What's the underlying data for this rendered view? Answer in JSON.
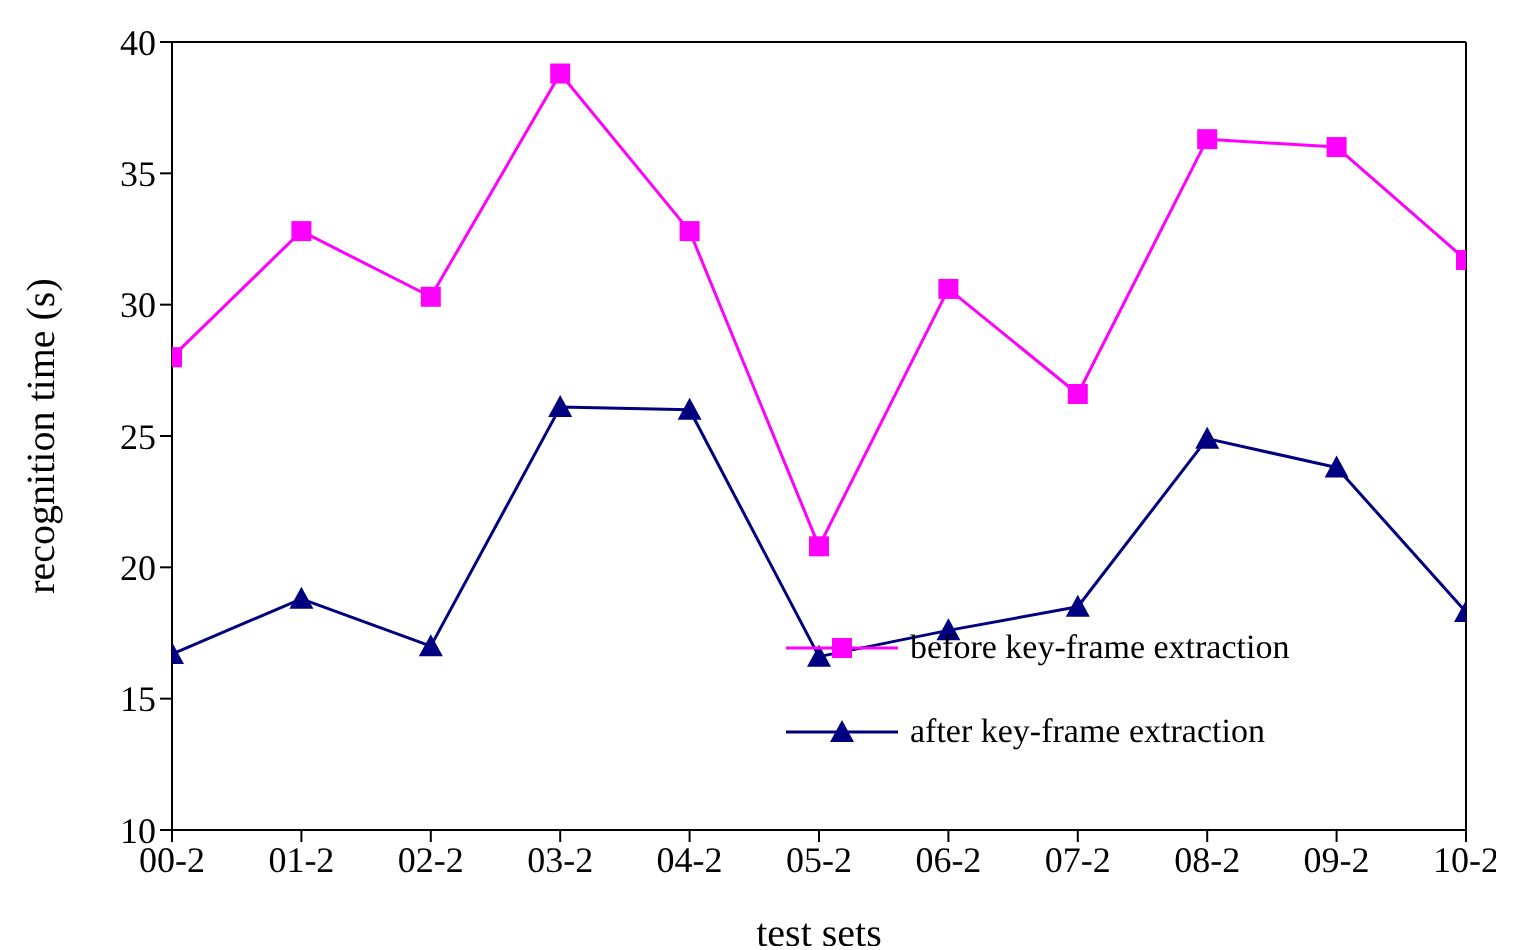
{
  "chart_data": {
    "type": "line",
    "xlabel": "test sets",
    "ylabel": "recognition time (s)",
    "categories": [
      "00-2",
      "01-2",
      "02-2",
      "03-2",
      "04-2",
      "05-2",
      "06-2",
      "07-2",
      "08-2",
      "09-2",
      "10-2"
    ],
    "series": [
      {
        "name": "before key-frame extraction",
        "color": "#ff00ff",
        "marker": "square",
        "values": [
          28.0,
          32.8,
          30.3,
          38.8,
          32.8,
          20.8,
          30.6,
          26.6,
          36.3,
          36.0,
          31.7
        ]
      },
      {
        "name": "after key-frame extraction",
        "color": "#000080",
        "marker": "triangle",
        "values": [
          16.7,
          18.8,
          17.0,
          26.1,
          26.0,
          16.6,
          17.6,
          18.5,
          24.9,
          23.8,
          18.3
        ]
      }
    ],
    "ylim": [
      10,
      40
    ],
    "yticks": [
      10,
      15,
      20,
      25,
      30,
      35,
      40
    ],
    "grid": false,
    "legend": "bottom right"
  }
}
